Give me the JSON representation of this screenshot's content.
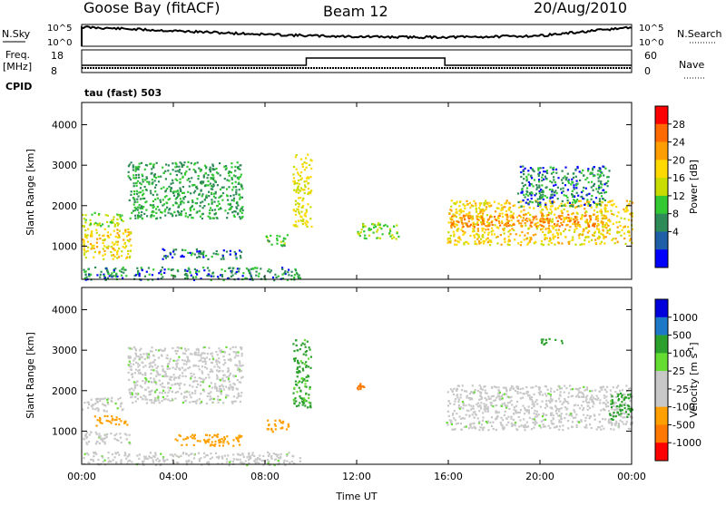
{
  "header": {
    "station": "Goose Bay (fitACF)",
    "beam": "Beam 12",
    "date": "20/Aug/2010"
  },
  "nsky_panel": {
    "left_label": "N.Sky",
    "right_label": "N.Search",
    "left_ticks": [
      "10^5",
      "10^0"
    ],
    "right_ticks": [
      "10^5",
      "10^0"
    ]
  },
  "freq_panel": {
    "left_label_1": "Freq.",
    "left_label_2": "[MHz]",
    "cpid_label": "CPID",
    "right_label": "Nave",
    "left_ticks": [
      "18",
      "8"
    ],
    "right_ticks": [
      "60",
      "0"
    ],
    "mode_text": "tau (fast) 503",
    "step_series": [
      [
        0,
        0.0
      ],
      [
        9.8,
        0.0
      ],
      [
        9.8,
        1.0
      ],
      [
        15.85,
        1.0
      ],
      [
        15.85,
        0.0
      ],
      [
        24,
        0.0
      ]
    ]
  },
  "x_axis": {
    "label": "Time UT",
    "ticks": [
      "00:00",
      "04:00",
      "08:00",
      "12:00",
      "16:00",
      "20:00",
      "00:00"
    ],
    "range_hours": [
      0,
      24
    ]
  },
  "power_colorbar": {
    "label": "Power [dB]",
    "ticks": [
      "28",
      "24",
      "20",
      "16",
      "12",
      "8",
      "4"
    ],
    "colors": [
      "#ff0000",
      "#ff6a00",
      "#ff9e00",
      "#ffd900",
      "#c8dc00",
      "#32c832",
      "#2e8b57",
      "#1e5fa8",
      "#0000ff"
    ]
  },
  "velocity_colorbar": {
    "label": "Velocity [m s-1]",
    "label_main": "Velocity [m s",
    "label_sup": "-1",
    "label_end": "]",
    "ticks": [
      "1000",
      "500",
      "100",
      "25",
      "-25",
      "-100",
      "-500",
      "-1000"
    ],
    "colors": [
      "#0000dc",
      "#1e78c8",
      "#2ca02c",
      "#64dc32",
      "#c8c8c8",
      "#c8c8c8",
      "#ffa000",
      "#ff7800",
      "#ff0000"
    ]
  },
  "chart_data": [
    {
      "type": "heatmap",
      "title": "",
      "xlabel": "",
      "ylabel": "Slant Range [km]",
      "yticks": [
        "1000",
        "2000",
        "3000",
        "4000"
      ],
      "xlim": [
        0,
        24
      ],
      "ylim": [
        180,
        4550
      ],
      "value_label": "Power [dB]",
      "regions": [
        {
          "t0": 0.0,
          "t1": 2.2,
          "r0": 700,
          "r1": 1450,
          "value": 18
        },
        {
          "t0": 0.0,
          "t1": 1.8,
          "r0": 1500,
          "r1": 1850,
          "value": 12
        },
        {
          "t0": 2.0,
          "t1": 7.0,
          "r0": 1700,
          "r1": 3100,
          "value": 8
        },
        {
          "t0": 3.5,
          "t1": 7.0,
          "r0": 700,
          "r1": 950,
          "value": 6
        },
        {
          "t0": 0.0,
          "t1": 9.5,
          "r0": 180,
          "r1": 500,
          "value": 6
        },
        {
          "t0": 8.0,
          "t1": 9.0,
          "r0": 1000,
          "r1": 1300,
          "value": 10
        },
        {
          "t0": 9.2,
          "t1": 10.0,
          "r0": 1500,
          "r1": 3300,
          "value": 16
        },
        {
          "t0": 12.0,
          "t1": 13.8,
          "r0": 1200,
          "r1": 1600,
          "value": 12
        },
        {
          "t0": 15.9,
          "t1": 24.0,
          "r0": 1050,
          "r1": 2150,
          "value": 18
        },
        {
          "t0": 16.0,
          "t1": 23.0,
          "r0": 1500,
          "r1": 1800,
          "value": 24
        },
        {
          "t0": 19.0,
          "t1": 23.0,
          "r0": 2000,
          "r1": 3000,
          "value": 6
        }
      ]
    },
    {
      "type": "heatmap",
      "title": "",
      "xlabel": "Time UT",
      "ylabel": "Slant Range [km]",
      "yticks": [
        "1000",
        "2000",
        "3000",
        "4000"
      ],
      "xlim": [
        0,
        24
      ],
      "ylim": [
        180,
        4550
      ],
      "value_label": "Velocity [m s-1]",
      "regions": [
        {
          "t0": 0.0,
          "t1": 2.2,
          "r0": 700,
          "r1": 1000,
          "value": 0
        },
        {
          "t0": 0.5,
          "t1": 2.0,
          "r0": 1150,
          "r1": 1400,
          "value": -150
        },
        {
          "t0": 0.0,
          "t1": 1.8,
          "r0": 1500,
          "r1": 1850,
          "value": 0
        },
        {
          "t0": 2.0,
          "t1": 7.0,
          "r0": 1700,
          "r1": 3100,
          "value": 0
        },
        {
          "t0": 4.0,
          "t1": 7.0,
          "r0": 650,
          "r1": 950,
          "value": -150
        },
        {
          "t0": 0.0,
          "t1": 9.5,
          "r0": 180,
          "r1": 500,
          "value": 0
        },
        {
          "t0": 8.0,
          "t1": 9.0,
          "r0": 1000,
          "r1": 1300,
          "value": -200
        },
        {
          "t0": 9.2,
          "t1": 10.0,
          "r0": 1600,
          "r1": 3300,
          "value": 120
        },
        {
          "t0": 12.0,
          "t1": 12.3,
          "r0": 2050,
          "r1": 2200,
          "value": -700
        },
        {
          "t0": 15.9,
          "t1": 24.0,
          "r0": 1050,
          "r1": 2150,
          "value": 0
        },
        {
          "t0": 23.0,
          "t1": 24.0,
          "r0": 1300,
          "r1": 2000,
          "value": 200
        },
        {
          "t0": 20.0,
          "t1": 21.0,
          "r0": 3150,
          "r1": 3300,
          "value": 150
        }
      ]
    }
  ]
}
